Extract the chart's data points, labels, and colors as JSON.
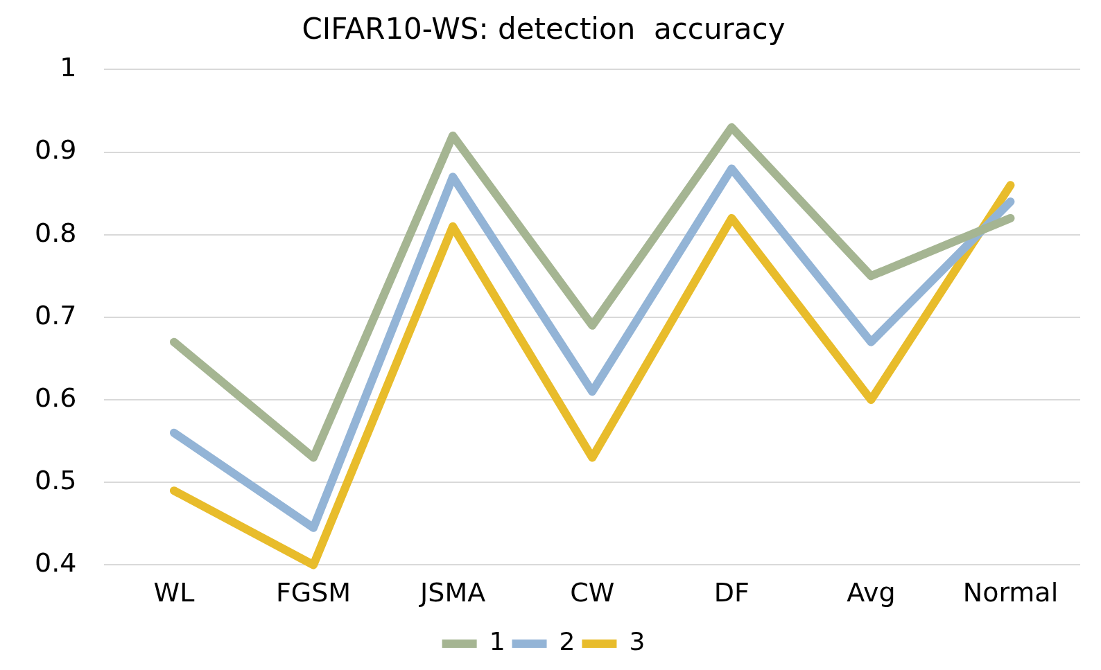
{
  "chart_data": {
    "type": "line",
    "title": "CIFAR10-WS: detection  accuracy",
    "categories": [
      "WL",
      "FGSM",
      "JSMA",
      "CW",
      "DF",
      "Avg",
      "Normal"
    ],
    "series": [
      {
        "name": "1",
        "color": "#a5b592",
        "values": [
          0.67,
          0.53,
          0.92,
          0.69,
          0.93,
          0.75,
          0.82
        ]
      },
      {
        "name": "2",
        "color": "#93b4d6",
        "values": [
          0.56,
          0.445,
          0.87,
          0.61,
          0.88,
          0.67,
          0.84
        ]
      },
      {
        "name": "3",
        "color": "#e8bc2b",
        "values": [
          0.49,
          0.4,
          0.81,
          0.53,
          0.82,
          0.6,
          0.86
        ]
      }
    ],
    "ylim": [
      0.4,
      1
    ],
    "yticks": [
      0.4,
      0.5,
      0.6,
      0.7,
      0.8,
      0.9,
      1
    ],
    "grid": "y",
    "legend": "bottom",
    "marker": "none",
    "line_style": "solid"
  }
}
